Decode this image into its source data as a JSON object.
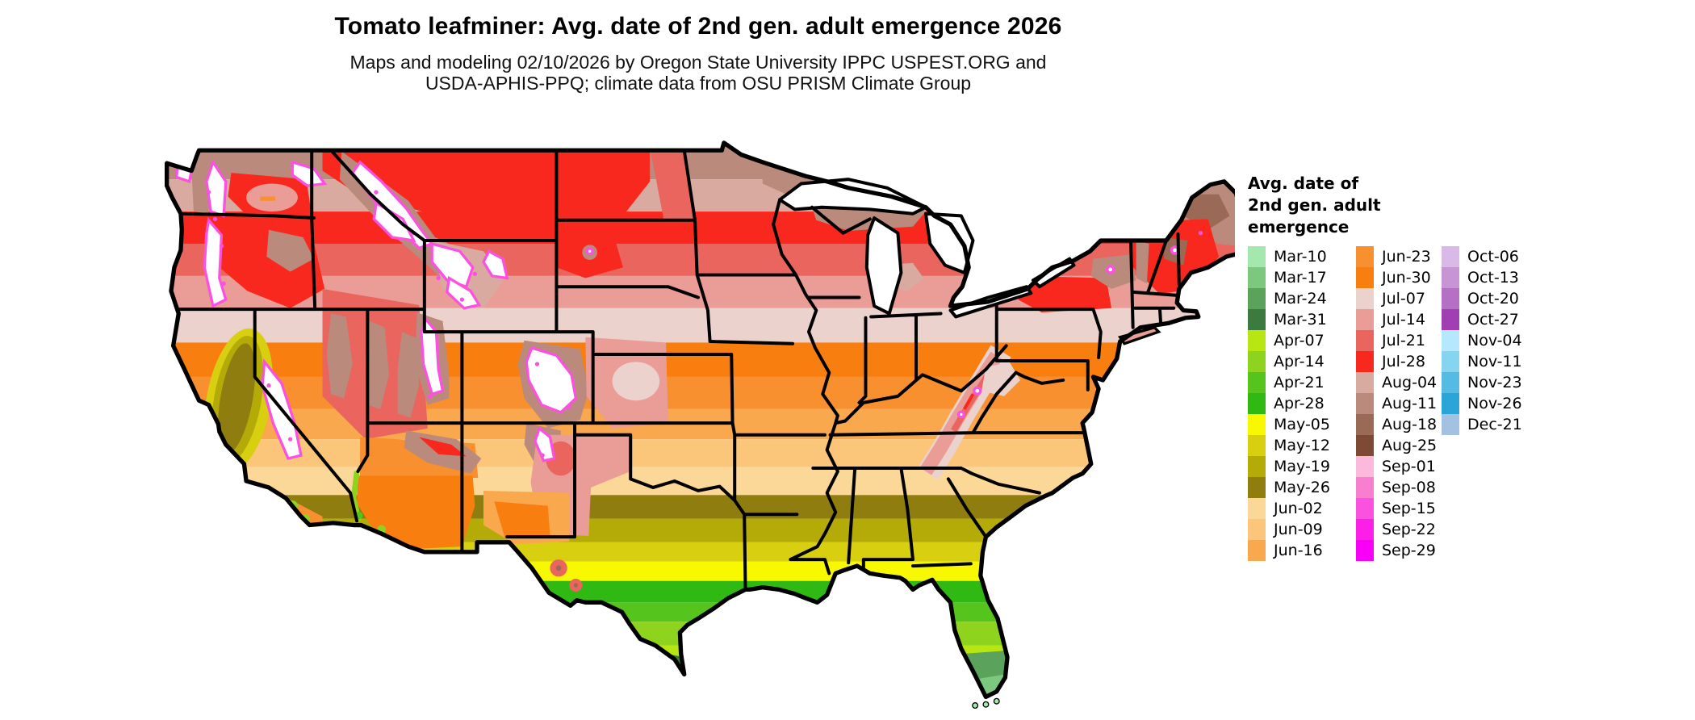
{
  "title": "Tomato leafminer: Avg. date of 2nd gen. adult emergence 2026",
  "subtitle_line1": "Maps and modeling 02/10/2026 by Oregon State University IPPC USPEST.ORG and",
  "subtitle_line2": "USDA-APHIS-PPQ; climate data from OSU PRISM Climate Group",
  "legend": {
    "title_lines": [
      "Avg. date of",
      "2nd gen. adult",
      "emergence"
    ],
    "columns": [
      [
        {
          "label": "Mar-10",
          "color": "#a5e8ae"
        },
        {
          "label": "Mar-17",
          "color": "#7cc87f"
        },
        {
          "label": "Mar-24",
          "color": "#5ba35c"
        },
        {
          "label": "Mar-31",
          "color": "#3d7a3f"
        },
        {
          "label": "Apr-07",
          "color": "#b8e612"
        },
        {
          "label": "Apr-14",
          "color": "#8ed41f"
        },
        {
          "label": "Apr-21",
          "color": "#55c41c"
        },
        {
          "label": "Apr-28",
          "color": "#2fb912"
        },
        {
          "label": "May-05",
          "color": "#f8f800"
        },
        {
          "label": "May-12",
          "color": "#d8cf10"
        },
        {
          "label": "May-19",
          "color": "#b4ab08"
        },
        {
          "label": "May-26",
          "color": "#8f7d10"
        },
        {
          "label": "Jun-02",
          "color": "#fcd898"
        },
        {
          "label": "Jun-09",
          "color": "#fbc57a"
        },
        {
          "label": "Jun-16",
          "color": "#f9a84e"
        }
      ],
      [
        {
          "label": "Jun-23",
          "color": "#f89030"
        },
        {
          "label": "Jun-30",
          "color": "#f87e10"
        },
        {
          "label": "Jul-07",
          "color": "#ecd2cd"
        },
        {
          "label": "Jul-14",
          "color": "#ea9d96"
        },
        {
          "label": "Jul-21",
          "color": "#ea655e"
        },
        {
          "label": "Jul-28",
          "color": "#f8281e"
        },
        {
          "label": "Aug-04",
          "color": "#d9aba0"
        },
        {
          "label": "Aug-11",
          "color": "#ba8a7c"
        },
        {
          "label": "Aug-18",
          "color": "#9b6a57"
        },
        {
          "label": "Aug-25",
          "color": "#7e4a35"
        },
        {
          "label": "Sep-01",
          "color": "#fcb9db"
        },
        {
          "label": "Sep-08",
          "color": "#f87fd0"
        },
        {
          "label": "Sep-15",
          "color": "#fb51e0"
        },
        {
          "label": "Sep-22",
          "color": "#fb1fe8"
        },
        {
          "label": "Sep-29",
          "color": "#f800f8"
        }
      ],
      [
        {
          "label": "Oct-06",
          "color": "#d9b9e8"
        },
        {
          "label": "Oct-13",
          "color": "#c795d6"
        },
        {
          "label": "Oct-20",
          "color": "#b56fc5"
        },
        {
          "label": "Oct-27",
          "color": "#a23eb4"
        },
        {
          "label": "Nov-04",
          "color": "#b5e8fc"
        },
        {
          "label": "Nov-11",
          "color": "#85d5f0"
        },
        {
          "label": "Nov-23",
          "color": "#55bbe4"
        },
        {
          "label": "Nov-26",
          "color": "#2ba4d8"
        },
        {
          "label": "Dec-21",
          "color": "#a3c2e2"
        }
      ]
    ]
  },
  "map": {
    "region": "Continental United States",
    "no_data_color": "#ffffff",
    "note_colors": {
      "late_fringe": "#fb51e0",
      "state_borders": "#000000"
    }
  }
}
